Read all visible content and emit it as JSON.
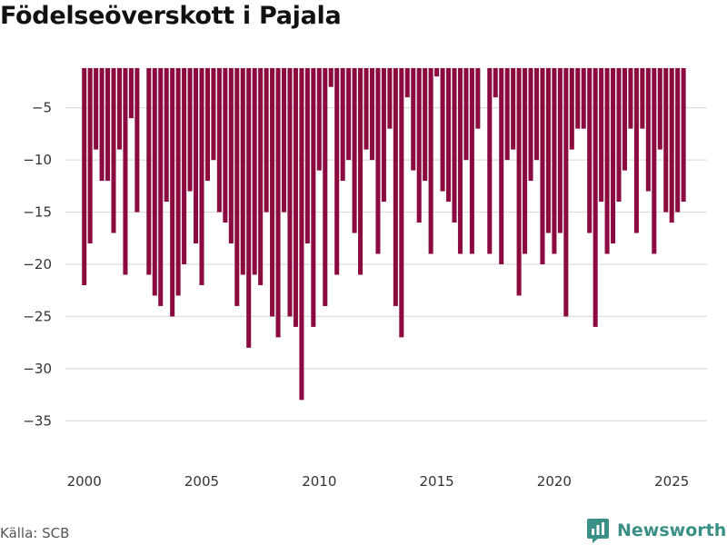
{
  "header": {
    "title": "Födelseöverskott i Pajala"
  },
  "footer": {
    "source": "Källa: SCB",
    "brand": "Newsworthy"
  },
  "colors": {
    "bar": "#8b0a3f",
    "grid": "#dddddd",
    "brand": "#3a8f87"
  },
  "chart_data": {
    "type": "bar",
    "title": "Födelseöverskott i Pajala",
    "xlabel": "",
    "ylabel": "",
    "x_start": 2000.0,
    "x_step": 0.25,
    "values": [
      -22,
      -18,
      -9,
      -12,
      -12,
      -17,
      -9,
      -21,
      -6,
      -15,
      0,
      -21,
      -23,
      -24,
      -14,
      -25,
      -23,
      -20,
      -13,
      -18,
      -22,
      -12,
      -10,
      -15,
      -16,
      -18,
      -24,
      -21,
      -28,
      -21,
      -22,
      -15,
      -25,
      -27,
      -15,
      -25,
      -26,
      -33,
      -18,
      -26,
      -11,
      -24,
      -3,
      -21,
      -12,
      -10,
      -17,
      -21,
      -9,
      -10,
      -19,
      -14,
      -7,
      -24,
      -27,
      -4,
      -11,
      -16,
      -12,
      -19,
      -2,
      -13,
      -14,
      -16,
      -19,
      -10,
      -19,
      -7,
      0,
      -19,
      -4,
      -20,
      -10,
      -9,
      -23,
      -19,
      -12,
      -10,
      -20,
      -17,
      -19,
      -17,
      -25,
      -9,
      -7,
      -7,
      -17,
      -26,
      -14,
      -19,
      -18,
      -14,
      -11,
      -7,
      -17,
      -7,
      -13,
      -19,
      -9,
      -15,
      -16,
      -15,
      -14
    ],
    "ylim": [
      -37.5,
      -1.2
    ],
    "xlim": [
      1999.2,
      2026.5
    ],
    "y_ticks": [
      -5,
      -10,
      -15,
      -20,
      -25,
      -30,
      -35
    ],
    "y_tick_labels": [
      "−5",
      "−10",
      "−15",
      "−20",
      "−25",
      "−30",
      "−35"
    ],
    "x_ticks": [
      2000,
      2005,
      2010,
      2015,
      2020,
      2025
    ],
    "x_tick_labels": [
      "2000",
      "2005",
      "2010",
      "2015",
      "2020",
      "2025"
    ],
    "grid": true
  }
}
